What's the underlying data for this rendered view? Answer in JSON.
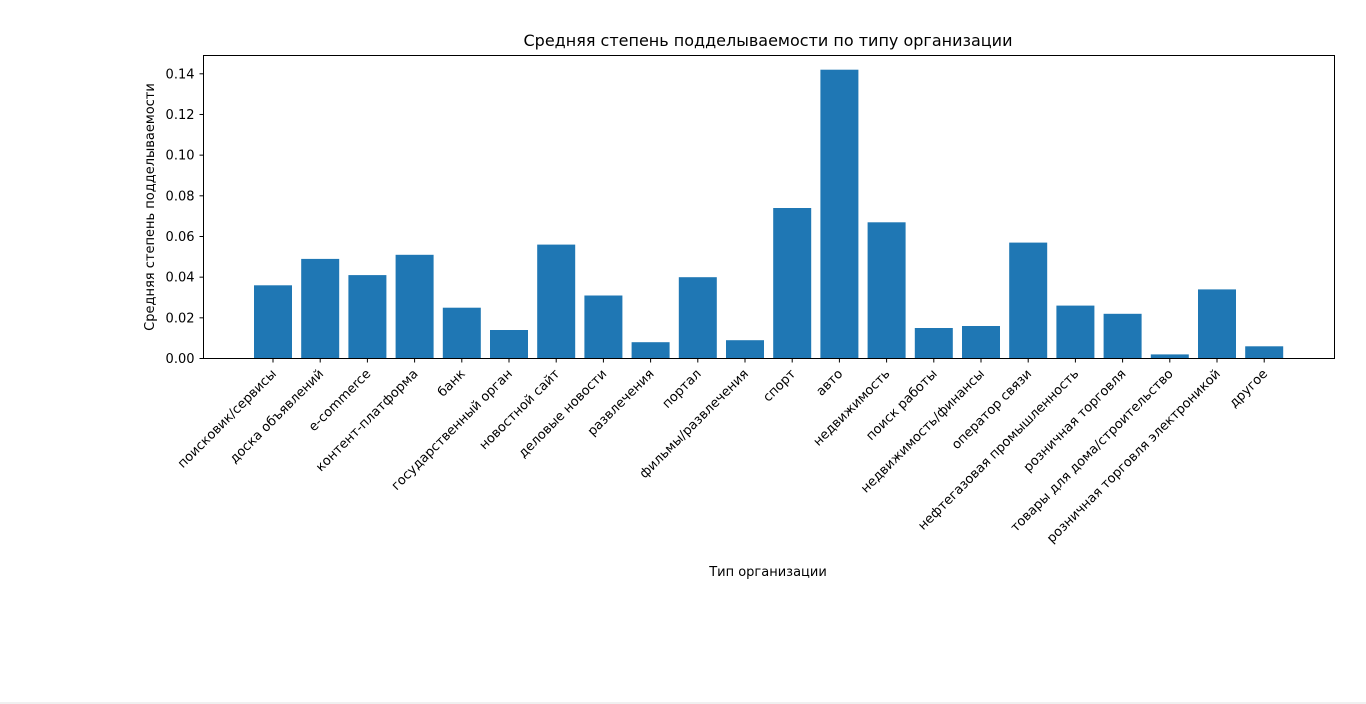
{
  "chart_data": {
    "type": "bar",
    "title": "Средняя степень подделываемости по типу организации",
    "xlabel": "Тип организации",
    "ylabel": "Средняя степень подделываемости",
    "ylim": [
      0,
      0.149
    ],
    "yticks": [
      "0.00",
      "0.02",
      "0.04",
      "0.06",
      "0.08",
      "0.10",
      "0.12",
      "0.14"
    ],
    "ytick_values": [
      0,
      0.02,
      0.04,
      0.06,
      0.08,
      0.1,
      0.12,
      0.14
    ],
    "grid": false,
    "bar_color": "#1f77b4",
    "categories": [
      "поисковик/сервисы",
      "доска объявлений",
      "e-commerce",
      "контент-платформа",
      "банк",
      "государственный орган",
      "новостной сайт",
      "деловые новости",
      "развлечения",
      "портал",
      "фильмы/развлечения",
      "спорт",
      "авто",
      "недвижимость",
      "поиск работы",
      "недвижимость/финансы",
      "оператор связи",
      "нефтегазовая промышленность",
      "розничная торговля",
      "товары для дома/строительство",
      "розничная торговля электроникой",
      "другое"
    ],
    "values": [
      0.036,
      0.049,
      0.041,
      0.051,
      0.025,
      0.014,
      0.056,
      0.031,
      0.008,
      0.04,
      0.009,
      0.074,
      0.142,
      0.067,
      0.015,
      0.016,
      0.057,
      0.026,
      0.022,
      0.002,
      0.034,
      0.006
    ]
  }
}
